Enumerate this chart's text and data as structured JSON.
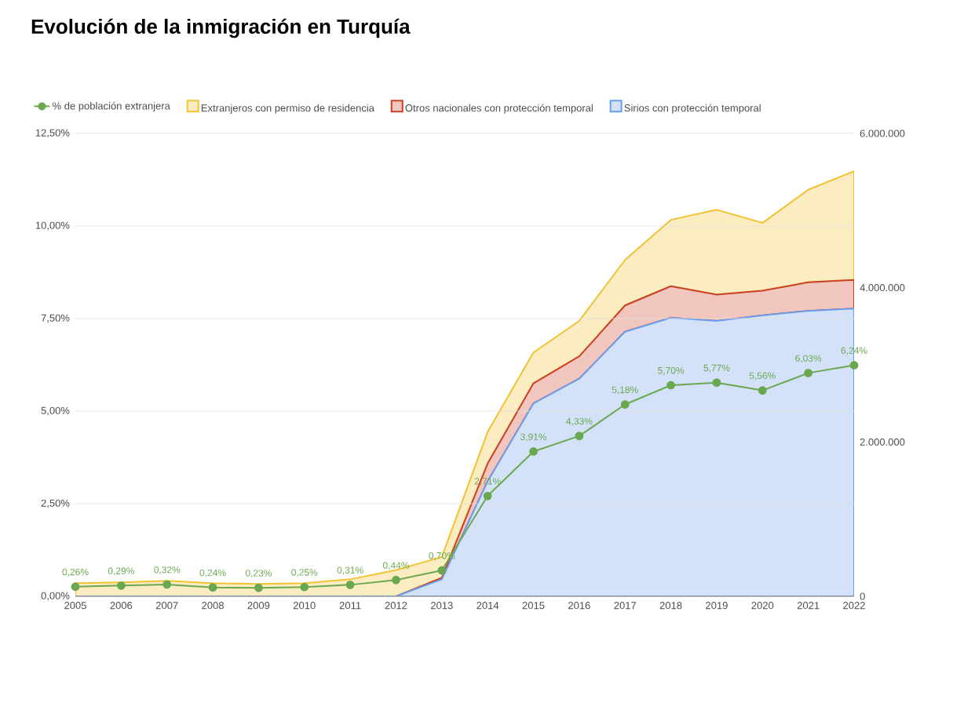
{
  "chart_data": {
    "type": "area",
    "title": "Evolución de la inmigración en Turquía",
    "categories": [
      "2005",
      "2006",
      "2007",
      "2008",
      "2009",
      "2010",
      "2011",
      "2012",
      "2013",
      "2014",
      "2015",
      "2016",
      "2017",
      "2018",
      "2019",
      "2020",
      "2021",
      "2022"
    ],
    "series": [
      {
        "name": "% de población extranjera",
        "type": "line",
        "axis": "y",
        "color": "#6aa84f",
        "marker": "circle",
        "line_style": "solid",
        "values": [
          0.26,
          0.29,
          0.32,
          0.24,
          0.23,
          0.25,
          0.31,
          0.44,
          0.7,
          2.71,
          3.91,
          4.33,
          5.18,
          5.7,
          5.77,
          5.56,
          6.03,
          6.24
        ],
        "value_labels": [
          "0,26%",
          "0,29%",
          "0,32%",
          "0,24%",
          "0,23%",
          "0,25%",
          "0,31%",
          "0,44%",
          "0,70%",
          "2,71%",
          "3,91%",
          "4,33%",
          "5,18%",
          "5,70%",
          "5,77%",
          "5,56%",
          "6,03%",
          "6,24%"
        ]
      },
      {
        "name": "Sirios con protección temporal",
        "axis": "y2",
        "color": "#6d9eeb",
        "values": [
          0,
          0,
          0,
          0,
          0,
          0,
          0,
          0,
          220000,
          1490000,
          2500000,
          2820000,
          3430000,
          3610000,
          3570000,
          3640000,
          3700000,
          3730000
        ]
      },
      {
        "name": "Otros nacionales con protección temporal",
        "axis": "y2",
        "color": "#cc4125",
        "values": [
          0,
          0,
          0,
          0,
          0,
          0,
          0,
          0,
          20000,
          230000,
          260000,
          290000,
          340000,
          410000,
          340000,
          320000,
          370000,
          370000
        ]
      },
      {
        "name": "Extranjeros con permiso de residencia",
        "axis": "y2",
        "color": "#f1c232",
        "values": [
          170000,
          180000,
          200000,
          170000,
          160000,
          170000,
          220000,
          340000,
          270000,
          410000,
          400000,
          460000,
          590000,
          860000,
          1100000,
          880000,
          1200000,
          1410000
        ]
      }
    ],
    "stacked": true,
    "ylim": [
      0,
      12.5
    ],
    "yticks": [
      {
        "value": 0,
        "label": "0,00%"
      },
      {
        "value": 2.5,
        "label": "2,50%"
      },
      {
        "value": 5,
        "label": "5,00%"
      },
      {
        "value": 7.5,
        "label": "7,50%"
      },
      {
        "value": 10,
        "label": "10,00%"
      },
      {
        "value": 12.5,
        "label": "12,50%"
      }
    ],
    "y2lim": [
      0,
      6000000
    ],
    "y2ticks": [
      {
        "value": 0,
        "label": "0"
      },
      {
        "value": 2000000,
        "label": "2.000.000"
      },
      {
        "value": 4000000,
        "label": "4.000.000"
      },
      {
        "value": 6000000,
        "label": "6.000.000"
      }
    ],
    "grid": "y",
    "legend": "top"
  }
}
